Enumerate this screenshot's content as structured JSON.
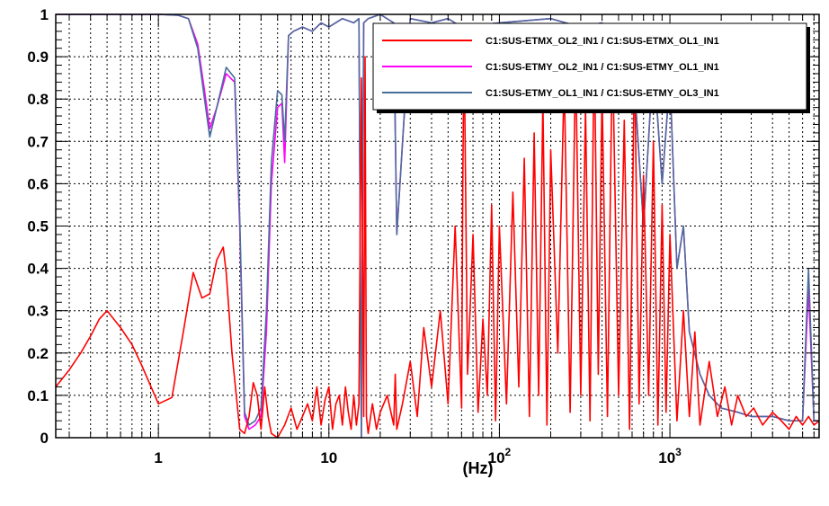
{
  "chart_data": {
    "type": "line",
    "title": "",
    "xlabel": "(Hz)",
    "ylabel": "",
    "x_scale": "log",
    "xlim": [
      0.25,
      7500
    ],
    "ylim": [
      0,
      1
    ],
    "grid": true,
    "legend_position": "top-right",
    "x_ticks": [
      {
        "value": 1,
        "label": "1"
      },
      {
        "value": 10,
        "label": "10"
      },
      {
        "value": 100,
        "base": "10",
        "exp": "2"
      },
      {
        "value": 1000,
        "base": "10",
        "exp": "3"
      }
    ],
    "y_ticks": [
      {
        "value": 0,
        "label": "0"
      },
      {
        "value": 0.1,
        "label": "0.1"
      },
      {
        "value": 0.2,
        "label": "0.2"
      },
      {
        "value": 0.3,
        "label": "0.3"
      },
      {
        "value": 0.4,
        "label": "0.4"
      },
      {
        "value": 0.5,
        "label": "0.5"
      },
      {
        "value": 0.6,
        "label": "0.6"
      },
      {
        "value": 0.7,
        "label": "0.7"
      },
      {
        "value": 0.8,
        "label": "0.8"
      },
      {
        "value": 0.9,
        "label": "0.9"
      },
      {
        "value": 1,
        "label": "1"
      }
    ],
    "series": [
      {
        "name": "C1:SUS-ETMX_OL2_IN1 / C1:SUS-ETMX_OL1_IN1",
        "color": "#ff0000",
        "x": [
          0.25,
          0.3,
          0.35,
          0.4,
          0.45,
          0.5,
          0.6,
          0.7,
          0.8,
          1.0,
          1.2,
          1.4,
          1.6,
          1.8,
          2.0,
          2.2,
          2.4,
          2.5,
          2.7,
          3.0,
          3.2,
          3.4,
          3.6,
          3.8,
          4.0,
          4.2,
          4.4,
          4.6,
          5.0,
          5.5,
          6.0,
          6.5,
          7,
          7.5,
          8,
          8.5,
          9,
          9.5,
          10,
          10.5,
          11,
          11.5,
          12,
          12.5,
          13,
          13.5,
          14,
          14.5,
          15,
          15.5,
          16,
          16.3,
          16.6,
          17,
          18,
          19,
          20,
          22,
          24,
          24.5,
          25,
          27,
          30,
          33,
          36,
          40,
          45,
          50,
          55,
          60,
          61,
          62,
          65,
          70,
          75,
          80,
          85,
          90,
          95,
          100,
          110,
          120,
          130,
          140,
          150,
          160,
          170,
          180,
          190,
          200,
          220,
          240,
          260,
          280,
          300,
          320,
          340,
          360,
          380,
          400,
          430,
          460,
          500,
          540,
          580,
          620,
          660,
          700,
          750,
          800,
          850,
          900,
          950,
          1000,
          1100,
          1200,
          1300,
          1400,
          1500,
          1700,
          1900,
          2100,
          2300,
          2500,
          2800,
          3100,
          3500,
          4000,
          4500,
          5000,
          5500,
          6000,
          6500,
          7000,
          7500
        ],
        "values": [
          0.12,
          0.16,
          0.2,
          0.24,
          0.28,
          0.3,
          0.26,
          0.22,
          0.17,
          0.08,
          0.095,
          0.25,
          0.39,
          0.33,
          0.34,
          0.42,
          0.45,
          0.39,
          0.2,
          0.02,
          0.01,
          0.05,
          0.13,
          0.1,
          0.02,
          0.12,
          0.05,
          0.01,
          0.0,
          0.03,
          0.07,
          0.02,
          0.05,
          0.08,
          0.04,
          0.12,
          0.03,
          0.09,
          0.12,
          0.02,
          0.08,
          0.1,
          0.03,
          0.12,
          0.06,
          0.02,
          0.1,
          0.03,
          0.08,
          0.85,
          0.05,
          0.9,
          0.05,
          0.01,
          0.08,
          0.02,
          0.06,
          0.1,
          0.03,
          0.15,
          0.02,
          0.08,
          0.18,
          0.05,
          0.26,
          0.12,
          0.3,
          0.08,
          0.5,
          0.07,
          0.6,
          0.95,
          0.15,
          0.48,
          0.06,
          0.28,
          0.1,
          0.55,
          0.04,
          0.5,
          0.08,
          0.58,
          0.12,
          0.66,
          0.05,
          0.72,
          0.1,
          0.8,
          0.03,
          0.68,
          0.2,
          0.85,
          0.06,
          0.9,
          0.1,
          0.78,
          0.04,
          0.95,
          0.15,
          0.82,
          0.05,
          0.93,
          0.1,
          0.75,
          0.02,
          0.9,
          0.08,
          0.62,
          0.1,
          0.7,
          0.03,
          0.55,
          0.06,
          0.48,
          0.04,
          0.3,
          0.05,
          0.25,
          0.03,
          0.18,
          0.05,
          0.12,
          0.03,
          0.1,
          0.05,
          0.07,
          0.03,
          0.06,
          0.04,
          0.02,
          0.05,
          0.03,
          0.05,
          0.03,
          0.04
        ]
      },
      {
        "name": "C1:SUS-ETMY_OL2_IN1 / C1:SUS-ETMY_OL1_IN1",
        "color": "#ff00ff",
        "x": [
          0.25,
          0.5,
          1.0,
          1.3,
          1.5,
          1.7,
          1.85,
          2.0,
          2.2,
          2.5,
          2.8,
          3.0,
          3.2,
          3.4,
          3.7,
          4.0,
          4.3,
          4.6,
          5.0,
          5.3,
          5.5,
          5.8,
          6.2,
          7,
          8,
          9,
          10,
          12,
          14,
          15,
          15.5,
          16,
          17,
          20,
          24,
          25,
          30,
          40,
          50,
          60,
          100,
          200,
          300,
          400,
          430,
          460,
          500,
          600,
          700,
          800,
          900,
          1000,
          1100,
          1200,
          1300,
          1500,
          1700,
          2000,
          2500,
          3000,
          4000,
          5000,
          6000,
          6500,
          7000,
          7500
        ],
        "values": [
          1.0,
          1.0,
          1.0,
          0.998,
          0.99,
          0.93,
          0.83,
          0.73,
          0.78,
          0.86,
          0.84,
          0.5,
          0.05,
          0.02,
          0.03,
          0.05,
          0.25,
          0.6,
          0.78,
          0.79,
          0.65,
          0.95,
          0.96,
          0.97,
          0.96,
          0.98,
          0.97,
          0.99,
          0.98,
          0.99,
          0.0,
          0.98,
          0.99,
          1.0,
          0.98,
          0.48,
          0.99,
          0.98,
          0.99,
          0.97,
          0.98,
          0.99,
          0.97,
          0.98,
          0.85,
          0.97,
          0.96,
          0.92,
          0.5,
          0.9,
          0.6,
          0.85,
          0.4,
          0.5,
          0.25,
          0.15,
          0.1,
          0.07,
          0.06,
          0.05,
          0.05,
          0.04,
          0.04,
          0.35,
          0.04,
          0.04
        ]
      },
      {
        "name": "C1:SUS-ETMY_OL1_IN1 / C1:SUS-ETMY_OL3_IN1",
        "color": "#4a6e9a",
        "x": [
          0.25,
          0.5,
          1.0,
          1.3,
          1.5,
          1.7,
          1.85,
          2.0,
          2.2,
          2.5,
          2.8,
          3.0,
          3.2,
          3.4,
          3.7,
          4.0,
          4.3,
          4.6,
          5.0,
          5.3,
          5.5,
          5.8,
          6.2,
          7,
          8,
          9,
          10,
          12,
          14,
          15,
          15.5,
          16,
          17,
          20,
          24,
          25,
          30,
          40,
          50,
          60,
          100,
          200,
          300,
          400,
          430,
          460,
          500,
          600,
          700,
          800,
          900,
          1000,
          1100,
          1200,
          1300,
          1500,
          1700,
          2000,
          2500,
          3000,
          4000,
          5000,
          6000,
          6500,
          7000,
          7500
        ],
        "values": [
          1.0,
          1.0,
          1.0,
          0.998,
          0.99,
          0.92,
          0.81,
          0.71,
          0.78,
          0.875,
          0.85,
          0.52,
          0.06,
          0.03,
          0.04,
          0.07,
          0.3,
          0.65,
          0.82,
          0.81,
          0.7,
          0.95,
          0.96,
          0.97,
          0.96,
          0.98,
          0.97,
          0.99,
          0.98,
          0.99,
          0.0,
          0.98,
          0.99,
          1.0,
          0.98,
          0.48,
          0.99,
          0.98,
          0.99,
          0.97,
          0.98,
          0.99,
          0.97,
          0.98,
          0.85,
          0.97,
          0.96,
          0.92,
          0.5,
          0.9,
          0.6,
          0.85,
          0.4,
          0.5,
          0.25,
          0.15,
          0.1,
          0.07,
          0.06,
          0.05,
          0.05,
          0.04,
          0.04,
          0.4,
          0.04,
          0.04
        ]
      }
    ]
  }
}
